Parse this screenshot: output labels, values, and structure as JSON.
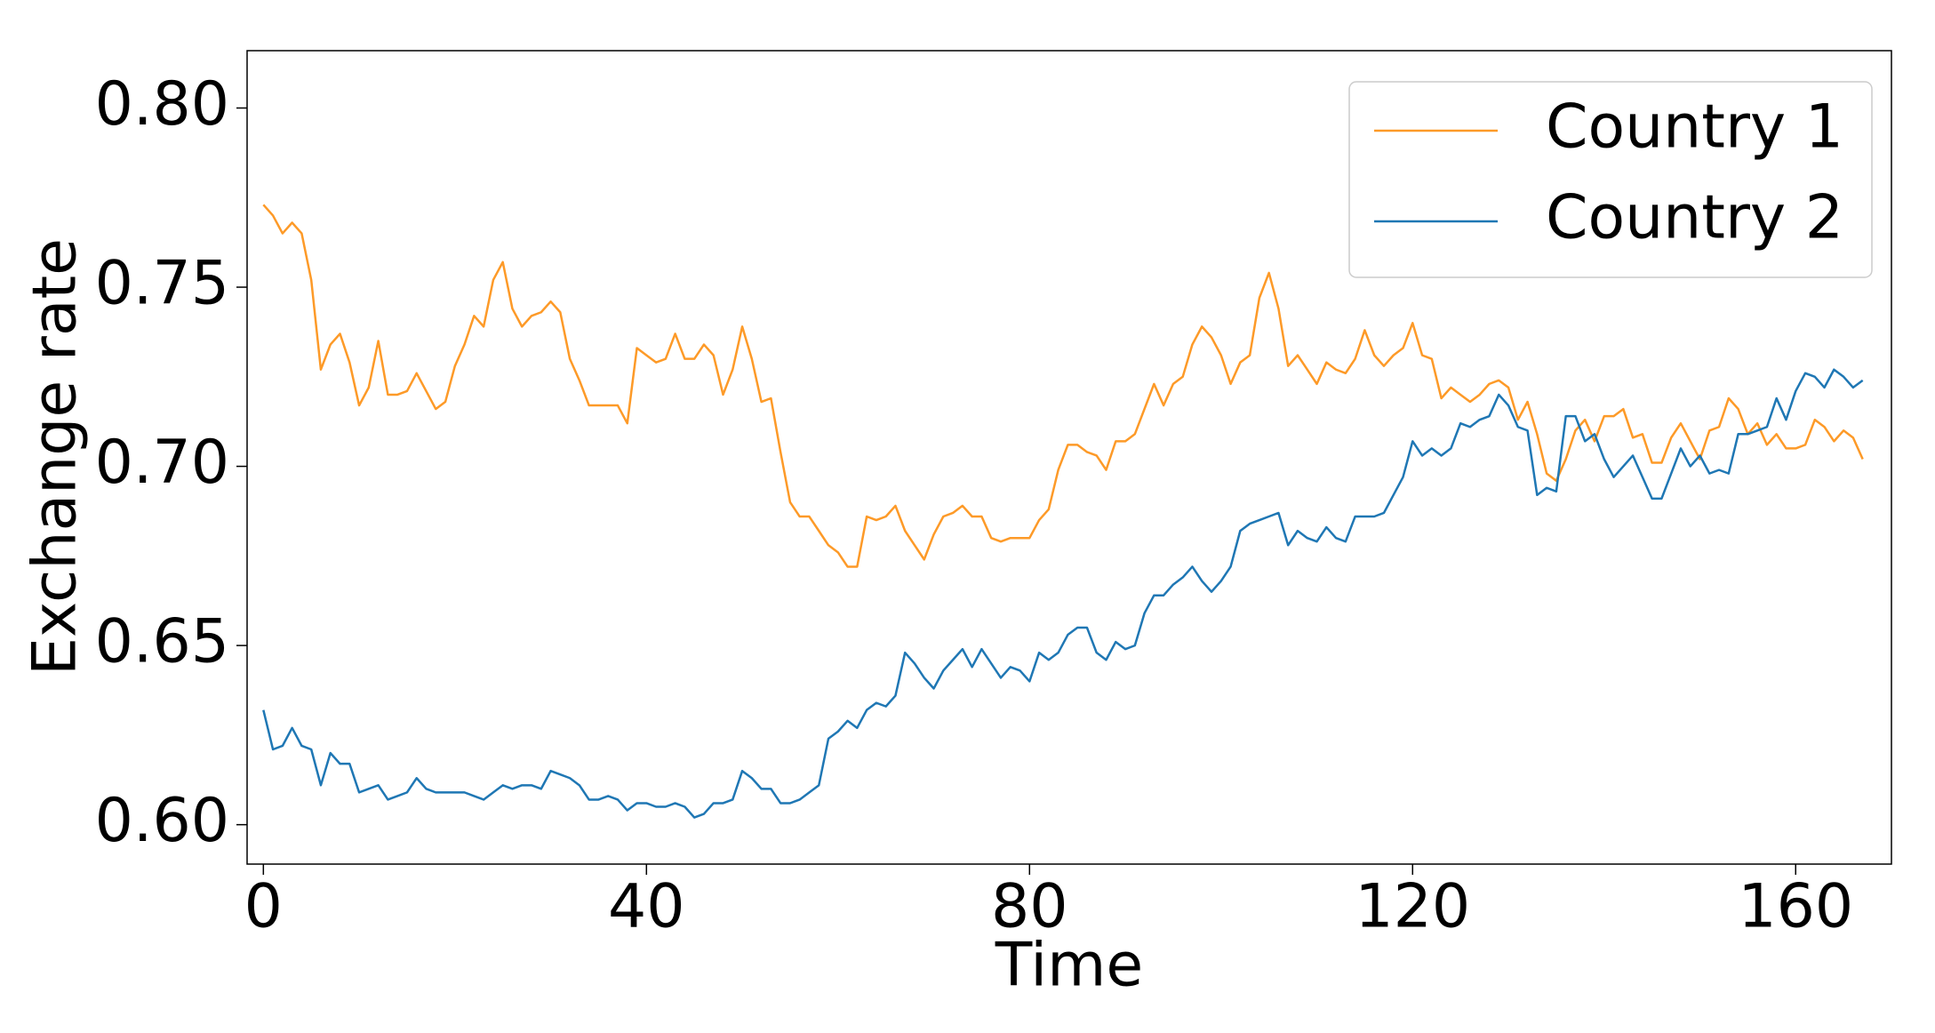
{
  "chart_data": {
    "type": "line",
    "x_label": "Time",
    "y_label": "Exchange rate",
    "x": [
      0,
      1,
      2,
      3,
      4,
      5,
      6,
      7,
      8,
      9,
      10,
      11,
      12,
      13,
      14,
      15,
      16,
      17,
      18,
      19,
      20,
      21,
      22,
      23,
      24,
      25,
      26,
      27,
      28,
      29,
      30,
      31,
      32,
      33,
      34,
      35,
      36,
      37,
      38,
      39,
      40,
      41,
      42,
      43,
      44,
      45,
      46,
      47,
      48,
      49,
      50,
      51,
      52,
      53,
      54,
      55,
      56,
      57,
      58,
      59,
      60,
      61,
      62,
      63,
      64,
      65,
      66,
      67,
      68,
      69,
      70,
      71,
      72,
      73,
      74,
      75,
      76,
      77,
      78,
      79,
      80,
      81,
      82,
      83,
      84,
      85,
      86,
      87,
      88,
      89,
      90,
      91,
      92,
      93,
      94,
      95,
      96,
      97,
      98,
      99,
      100,
      101,
      102,
      103,
      104,
      105,
      106,
      107,
      108,
      109,
      110,
      111,
      112,
      113,
      114,
      115,
      116,
      117,
      118,
      119,
      120,
      121,
      122,
      123,
      124,
      125,
      126,
      127,
      128,
      129,
      130,
      131,
      132,
      133,
      134,
      135,
      136,
      137,
      138,
      139,
      140,
      141,
      142,
      143,
      144,
      145,
      146,
      147,
      148,
      149,
      150,
      151,
      152,
      153,
      154,
      155,
      156,
      157,
      158,
      159,
      160,
      161,
      162,
      163,
      164,
      165,
      166,
      167
    ],
    "series": [
      {
        "name": "Country 1",
        "color": "#fd9a28",
        "values": [
          0.773,
          0.77,
          0.765,
          0.768,
          0.765,
          0.752,
          0.727,
          0.734,
          0.737,
          0.729,
          0.717,
          0.722,
          0.735,
          0.72,
          0.72,
          0.721,
          0.726,
          0.721,
          0.716,
          0.718,
          0.728,
          0.734,
          0.742,
          0.739,
          0.752,
          0.757,
          0.744,
          0.739,
          0.742,
          0.743,
          0.746,
          0.743,
          0.73,
          0.724,
          0.717,
          0.717,
          0.717,
          0.717,
          0.712,
          0.733,
          0.731,
          0.729,
          0.73,
          0.737,
          0.73,
          0.73,
          0.734,
          0.731,
          0.72,
          0.727,
          0.739,
          0.73,
          0.718,
          0.719,
          0.704,
          0.69,
          0.686,
          0.686,
          0.682,
          0.678,
          0.676,
          0.672,
          0.672,
          0.686,
          0.685,
          0.686,
          0.689,
          0.682,
          0.678,
          0.674,
          0.681,
          0.686,
          0.687,
          0.689,
          0.686,
          0.686,
          0.68,
          0.679,
          0.68,
          0.68,
          0.68,
          0.685,
          0.688,
          0.699,
          0.706,
          0.706,
          0.704,
          0.703,
          0.699,
          0.707,
          0.707,
          0.709,
          0.716,
          0.723,
          0.717,
          0.723,
          0.725,
          0.734,
          0.739,
          0.736,
          0.731,
          0.723,
          0.729,
          0.731,
          0.747,
          0.754,
          0.744,
          0.728,
          0.731,
          0.727,
          0.723,
          0.729,
          0.727,
          0.726,
          0.73,
          0.738,
          0.731,
          0.728,
          0.731,
          0.733,
          0.74,
          0.731,
          0.73,
          0.719,
          0.722,
          0.72,
          0.718,
          0.72,
          0.723,
          0.724,
          0.722,
          0.713,
          0.718,
          0.709,
          0.698,
          0.696,
          0.702,
          0.71,
          0.713,
          0.707,
          0.714,
          0.714,
          0.716,
          0.708,
          0.709,
          0.701,
          0.701,
          0.708,
          0.712,
          0.707,
          0.702,
          0.71,
          0.711,
          0.719,
          0.716,
          0.709,
          0.712,
          0.706,
          0.709,
          0.705,
          0.705,
          0.706,
          0.713,
          0.711,
          0.707,
          0.71,
          0.708,
          0.702
        ]
      },
      {
        "name": "Country 2",
        "color": "#1f77b4",
        "values": [
          0.632,
          0.621,
          0.622,
          0.627,
          0.622,
          0.621,
          0.611,
          0.62,
          0.617,
          0.617,
          0.609,
          0.61,
          0.611,
          0.607,
          0.608,
          0.609,
          0.613,
          0.61,
          0.609,
          0.609,
          0.609,
          0.609,
          0.608,
          0.607,
          0.609,
          0.611,
          0.61,
          0.611,
          0.611,
          0.61,
          0.615,
          0.614,
          0.613,
          0.611,
          0.607,
          0.607,
          0.608,
          0.607,
          0.604,
          0.606,
          0.606,
          0.605,
          0.605,
          0.606,
          0.605,
          0.602,
          0.603,
          0.606,
          0.606,
          0.607,
          0.615,
          0.613,
          0.61,
          0.61,
          0.606,
          0.606,
          0.607,
          0.609,
          0.611,
          0.624,
          0.626,
          0.629,
          0.627,
          0.632,
          0.634,
          0.633,
          0.636,
          0.648,
          0.645,
          0.641,
          0.638,
          0.643,
          0.646,
          0.649,
          0.644,
          0.649,
          0.645,
          0.641,
          0.644,
          0.643,
          0.64,
          0.648,
          0.646,
          0.648,
          0.653,
          0.655,
          0.655,
          0.648,
          0.646,
          0.651,
          0.649,
          0.65,
          0.659,
          0.664,
          0.664,
          0.667,
          0.669,
          0.672,
          0.668,
          0.665,
          0.668,
          0.672,
          0.682,
          0.684,
          0.685,
          0.686,
          0.687,
          0.678,
          0.682,
          0.68,
          0.679,
          0.683,
          0.68,
          0.679,
          0.686,
          0.686,
          0.686,
          0.687,
          0.692,
          0.697,
          0.707,
          0.703,
          0.705,
          0.703,
          0.705,
          0.712,
          0.711,
          0.713,
          0.714,
          0.72,
          0.717,
          0.711,
          0.71,
          0.692,
          0.694,
          0.693,
          0.714,
          0.714,
          0.707,
          0.709,
          0.702,
          0.697,
          0.7,
          0.703,
          0.697,
          0.691,
          0.691,
          0.698,
          0.705,
          0.7,
          0.703,
          0.698,
          0.699,
          0.698,
          0.709,
          0.709,
          0.71,
          0.711,
          0.719,
          0.713,
          0.721,
          0.726,
          0.725,
          0.722,
          0.727,
          0.725,
          0.722,
          0.724
        ]
      }
    ],
    "xlim": [
      -1.7,
      170
    ],
    "ylim": [
      0.589,
      0.816
    ],
    "xticks": [
      0,
      40,
      80,
      120,
      160
    ],
    "yticks": [
      {
        "value": 0.6,
        "label": "0.60"
      },
      {
        "value": 0.65,
        "label": "0.65"
      },
      {
        "value": 0.7,
        "label": "0.70"
      },
      {
        "value": 0.75,
        "label": "0.75"
      },
      {
        "value": 0.8,
        "label": "0.80"
      }
    ],
    "legend": "upper right"
  }
}
